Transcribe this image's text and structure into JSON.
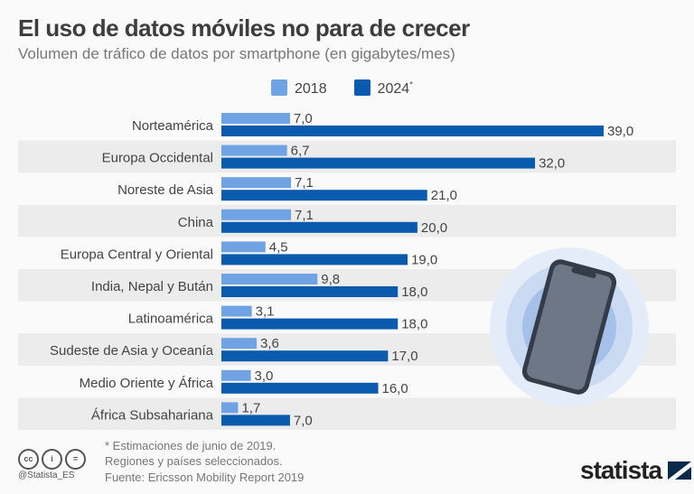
{
  "title": "El uso de datos móviles no para de crecer",
  "subtitle": "Volumen de tráfico de datos por smartphone (en gigabytes/mes)",
  "footnotes": [
    "* Estimaciones de junio de 2019.",
    "Regiones y países seleccionados.",
    "Fuente: Ericsson Mobility Report 2019"
  ],
  "handle": "@Statista_ES",
  "logo": "statista",
  "icons": [
    "cc-icon",
    "attribution-icon",
    "no-derivatives-icon",
    "smartphone-icon"
  ],
  "chart_data": {
    "type": "bar",
    "orientation": "horizontal",
    "title": "El uso de datos móviles no para de crecer",
    "subtitle": "Volumen de tráfico de datos por smartphone (en gigabytes/mes)",
    "categories": [
      "Norteamérica",
      "Europa Occidental",
      "Noreste de Asia",
      "China",
      "Europa Central y Oriental",
      "India, Nepal y Bután",
      "Latinoamérica",
      "Sudeste de Asia y Oceanía",
      "Medio Oriente y África",
      "África Subsahariana"
    ],
    "series": [
      {
        "name": "2018",
        "color": "#6fa3e3",
        "values": [
          7.0,
          6.7,
          7.1,
          7.1,
          4.5,
          9.8,
          3.1,
          3.6,
          3.0,
          1.7
        ],
        "labels": [
          "7,0",
          "6,7",
          "7,1",
          "7,1",
          "4,5",
          "9,8",
          "3,1",
          "3,6",
          "3,0",
          "1,7"
        ]
      },
      {
        "name": "2024",
        "name_suffix": "*",
        "color": "#0a5aad",
        "values": [
          39.0,
          32.0,
          21.0,
          20.0,
          19.0,
          18.0,
          18.0,
          17.0,
          16.0,
          7.0
        ],
        "labels": [
          "39,0",
          "32,0",
          "21,0",
          "20,0",
          "19,0",
          "18,0",
          "18,0",
          "17,0",
          "16,0",
          "7,0"
        ]
      }
    ],
    "legend": "top",
    "grid": false,
    "xlim": [
      0,
      39
    ]
  }
}
